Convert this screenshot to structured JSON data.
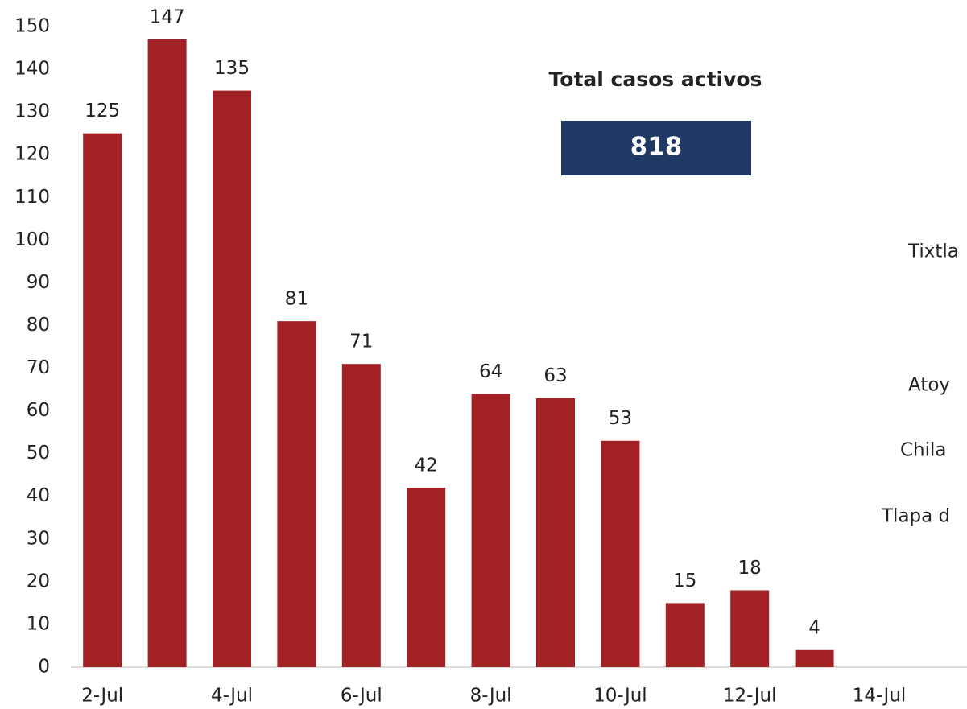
{
  "chart_data": {
    "type": "bar",
    "categories": [
      "2-Jul",
      null,
      "4-Jul",
      null,
      "6-Jul",
      null,
      "8-Jul",
      null,
      "10-Jul",
      null,
      "12-Jul",
      null,
      "14-Jul"
    ],
    "values": [
      125,
      147,
      135,
      81,
      71,
      42,
      64,
      63,
      53,
      15,
      18,
      4,
      null
    ],
    "color": "#a12124",
    "ylim": [
      0,
      150
    ],
    "yticks": [
      0,
      10,
      20,
      30,
      40,
      50,
      60,
      70,
      80,
      90,
      100,
      110,
      120,
      130,
      140,
      150
    ],
    "grid": false,
    "annotations": [
      "Total casos activos",
      "818",
      "Tixtla",
      "Atoy",
      "Chila",
      "Tlapa d"
    ]
  }
}
